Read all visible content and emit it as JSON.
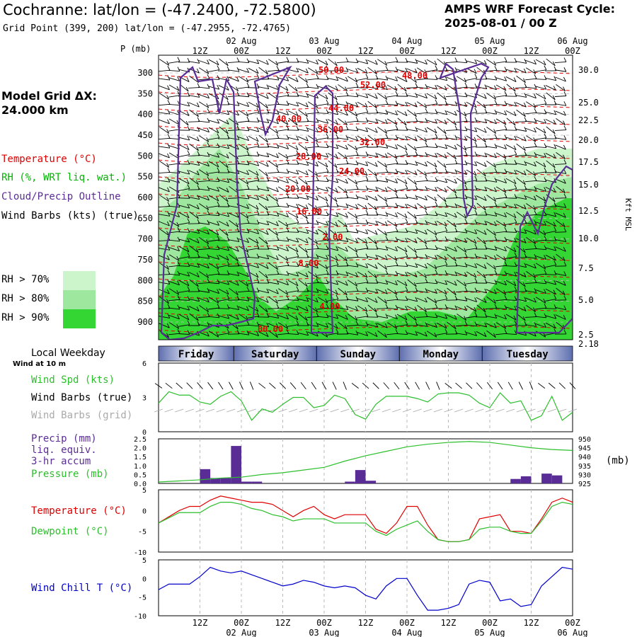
{
  "header": {
    "title": "Cochranne:  lat/lon = (-47.2400, -72.5800)",
    "subtitle": "Grid Point (399, 200) lat/lon = (-47.2955, -72.4765)",
    "cycle_line1": "AMPS WRF Forecast Cycle:",
    "cycle_line2": "2025-08-01 / 00  Z"
  },
  "sidebar": {
    "pressure_unit": "P (mb)",
    "grid_label_1": "Model Grid ΔX:",
    "grid_label_2": " 24.000 km",
    "legend_temperature": "Temperature (°C)",
    "legend_rh": "RH (%, WRT liq. wat.)",
    "legend_cloud": "Cloud/Precip Outline",
    "legend_barbs": "Wind Barbs (kts) (true)",
    "rh70": "RH > 70%",
    "rh80": "RH > 80%",
    "rh90": "RH > 90%",
    "local_weekday": "Local Weekday",
    "wind_10m": "Wind at 10 m",
    "wind_spd": "Wind Spd (kts)",
    "barbs_true": "Wind Barbs (true)",
    "barbs_grid": "Wind Barbs (grid)",
    "precip_1": "Precip (mm)",
    "precip_2": "liq. equiv.",
    "precip_3": "3-hr accum",
    "pressure": "Pressure (mb)",
    "pressure_right_unit": "(mb)",
    "temperature": "Temperature (°C)",
    "dewpoint": "Dewpoint (°C)",
    "wind_chill": "Wind Chill T (°C)",
    "kft_label": "Kft MSL"
  },
  "colors": {
    "temperature": "#e00000",
    "rh_label": "#00b400",
    "cloud": "#5a2d96",
    "rh70": "#ccf5cc",
    "rh80": "#9ee79e",
    "rh90": "#33d633",
    "wind_spd": "#2cbf2c",
    "pressure": "#2cbf2c",
    "precip_bar": "#5a2d96",
    "dewpoint": "#2cbf2c",
    "wind_chill": "#0000cc",
    "barb_grid": "#aaaaaa"
  },
  "chart_data": [
    {
      "type": "contour",
      "name": "time-height cross section",
      "x_ticks_top_hours": [
        "12Z",
        "00Z",
        "12Z",
        "00Z",
        "12Z",
        "00Z",
        "12Z",
        "00Z",
        "12Z",
        "00Z"
      ],
      "x_ticks_top_dates": [
        "02 Aug",
        "03 Aug",
        "04 Aug",
        "05 Aug",
        "06 Aug"
      ],
      "y_pressure_ticks": [
        300,
        350,
        400,
        450,
        500,
        550,
        600,
        650,
        700,
        750,
        800,
        850,
        900
      ],
      "y_height_kft_ticks": [
        "30.0",
        "25.0",
        "22.5",
        "20.0",
        "17.5",
        "15.0",
        "12.5",
        "10.0",
        "7.5",
        "5.0",
        "2.5",
        "2.18"
      ],
      "temperature_contour_labels": [
        "50.00",
        "52.00",
        "48.00",
        "44.00",
        "40.00",
        "36.00",
        "32.00",
        "28.00",
        "24.00",
        "20.00",
        "16.00",
        "2.00",
        "8.00",
        "4.00",
        "00.00"
      ]
    },
    {
      "type": "table",
      "name": "local weekday",
      "days": [
        "Friday",
        "Saturday",
        "Sunday",
        "Monday",
        "Tuesday"
      ]
    },
    {
      "type": "line",
      "name": "10 m wind speed",
      "y_ticks": [
        "6",
        "3",
        "0"
      ],
      "x_hours": [
        0,
        3,
        6,
        9,
        12,
        15,
        18,
        21,
        24,
        27,
        30,
        33,
        36,
        39,
        42,
        45,
        48,
        51,
        54,
        57,
        60,
        63,
        66,
        69,
        72,
        75,
        78,
        81,
        84,
        87,
        90,
        93,
        96,
        99,
        102,
        105,
        108,
        111,
        114,
        117,
        120
      ],
      "values": [
        2.5,
        3.5,
        3.2,
        3.2,
        2.6,
        2.4,
        3.1,
        3.5,
        2.7,
        1.0,
        2.0,
        1.7,
        2.4,
        3.0,
        3.0,
        2.1,
        2.3,
        3.2,
        2.9,
        1.5,
        1.1,
        2.4,
        3.1,
        3.1,
        3.1,
        2.9,
        2.6,
        3.3,
        3.4,
        3.4,
        3.2,
        2.5,
        2.1,
        3.4,
        2.5,
        2.7,
        1.0,
        1.4,
        3.1,
        1.0,
        1.7
      ]
    },
    {
      "type": "bar",
      "name": "3-hr precipitation and pressure",
      "y_left_ticks": [
        "2.5",
        "2.0",
        "1.5",
        "1.0",
        "0.5",
        "0.0"
      ],
      "y_right_ticks": [
        "950",
        "945",
        "940",
        "935",
        "930",
        "925"
      ],
      "precip_bars": [
        {
          "hour": 15,
          "value": 0.8
        },
        {
          "hour": 18,
          "value": 0.3
        },
        {
          "hour": 21,
          "value": 0.3
        },
        {
          "hour": 24,
          "value": 2.1
        },
        {
          "hour": 27,
          "value": 0.1
        },
        {
          "hour": 30,
          "value": 0.1
        },
        {
          "hour": 57,
          "value": 0.1
        },
        {
          "hour": 60,
          "value": 0.75
        },
        {
          "hour": 63,
          "value": 0.15
        },
        {
          "hour": 105,
          "value": 0.25
        },
        {
          "hour": 108,
          "value": 0.4
        },
        {
          "hour": 114,
          "value": 0.55
        },
        {
          "hour": 117,
          "value": 0.45
        }
      ],
      "pressure": [
        [
          0,
          925.8
        ],
        [
          6,
          926.4
        ],
        [
          12,
          927.0
        ],
        [
          18,
          928.0
        ],
        [
          24,
          928.5
        ],
        [
          30,
          930.0
        ],
        [
          36,
          931.0
        ],
        [
          42,
          932.5
        ],
        [
          48,
          934.0
        ],
        [
          54,
          937.5
        ],
        [
          60,
          940.5
        ],
        [
          66,
          943.0
        ],
        [
          72,
          945.5
        ],
        [
          78,
          947.0
        ],
        [
          84,
          948.0
        ],
        [
          90,
          948.5
        ],
        [
          96,
          948.0
        ],
        [
          102,
          946.5
        ],
        [
          108,
          945.0
        ],
        [
          114,
          944.0
        ],
        [
          120,
          943.5
        ]
      ]
    },
    {
      "type": "line",
      "name": "temperature and dewpoint",
      "y_ticks": [
        "5",
        "0",
        "-5",
        "-10"
      ],
      "x_hours": [
        0,
        6,
        9,
        12,
        15,
        18,
        21,
        24,
        27,
        30,
        33,
        36,
        39,
        42,
        45,
        48,
        51,
        54,
        57,
        60,
        63,
        66,
        69,
        72,
        75,
        78,
        81,
        84,
        87,
        90,
        93,
        96,
        99,
        102,
        105,
        108,
        111,
        114,
        117,
        120
      ],
      "series": [
        {
          "name": "Temperature",
          "values": [
            -3.0,
            0.0,
            1.0,
            1.0,
            2.5,
            3.5,
            3.0,
            2.5,
            2.0,
            2.0,
            1.5,
            0.0,
            -1.5,
            0.0,
            1.0,
            -1.0,
            -2.0,
            -1.0,
            -1.0,
            -1.0,
            -4.5,
            -5.5,
            -3.0,
            1.0,
            1.0,
            -3.5,
            -7.0,
            -7.5,
            -7.5,
            -7.0,
            -2.0,
            -1.5,
            -1.0,
            -5.0,
            -5.0,
            -5.5,
            -2.0,
            2.0,
            3.0,
            2.0
          ]
        },
        {
          "name": "Dewpoint",
          "values": [
            -3.0,
            -0.5,
            -0.5,
            -0.5,
            1.0,
            2.0,
            2.0,
            1.5,
            0.5,
            0.0,
            -1.0,
            -1.5,
            -2.5,
            -2.0,
            -2.0,
            -2.0,
            -3.0,
            -3.0,
            -3.0,
            -3.0,
            -5.0,
            -6.0,
            -4.5,
            -3.5,
            -2.5,
            -5.0,
            -7.0,
            -7.5,
            -7.5,
            -7.0,
            -4.5,
            -4.0,
            -4.0,
            -5.0,
            -5.5,
            -5.5,
            -2.5,
            1.0,
            2.0,
            1.5
          ]
        }
      ]
    },
    {
      "type": "line",
      "name": "wind chill",
      "y_ticks": [
        "5",
        "0",
        "-5",
        "-10"
      ],
      "x_hours": [
        0,
        3,
        6,
        9,
        12,
        15,
        18,
        21,
        24,
        27,
        30,
        33,
        36,
        39,
        42,
        45,
        48,
        51,
        54,
        57,
        60,
        63,
        66,
        69,
        72,
        75,
        78,
        81,
        84,
        87,
        90,
        93,
        96,
        99,
        102,
        105,
        108,
        111,
        114,
        117,
        120
      ],
      "values": [
        -3.0,
        -1.5,
        -1.5,
        -1.5,
        0.5,
        3.0,
        2.0,
        1.5,
        2.0,
        1.0,
        0.0,
        -1.0,
        -2.0,
        -1.5,
        -0.5,
        -1.0,
        -2.0,
        -2.5,
        -2.0,
        -2.5,
        -4.5,
        -5.5,
        -2.0,
        0.0,
        0.0,
        -4.5,
        -8.5,
        -8.5,
        -8.0,
        -7.0,
        -1.5,
        -0.5,
        -1.0,
        -6.0,
        -5.5,
        -7.5,
        -7.0,
        -2.0,
        0.5,
        3.0,
        2.5
      ]
    }
  ]
}
